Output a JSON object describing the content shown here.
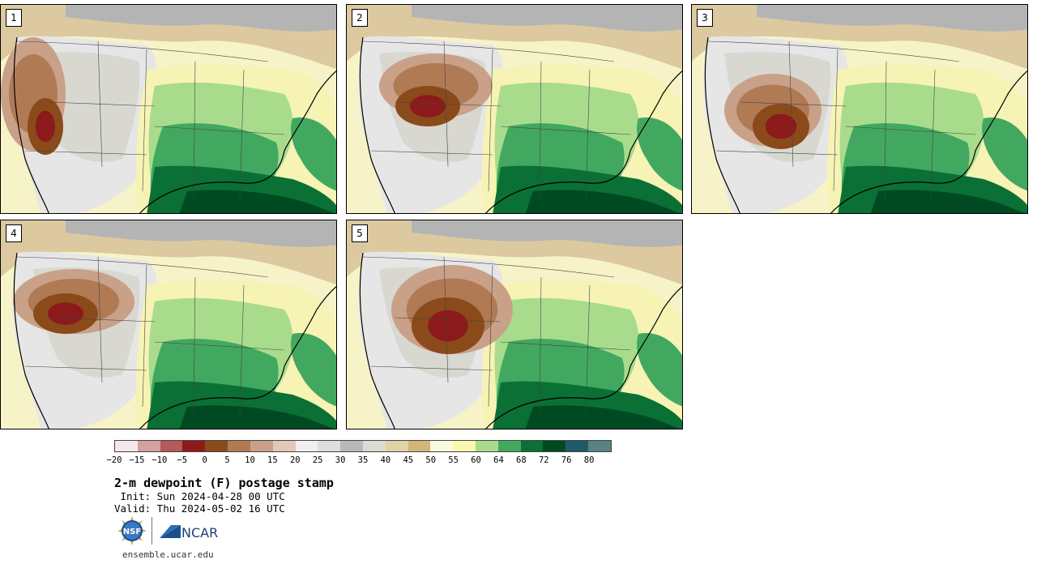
{
  "panels": [
    {
      "label": "1",
      "variant": 0
    },
    {
      "label": "2",
      "variant": 1
    },
    {
      "label": "3",
      "variant": 2
    },
    {
      "label": "4",
      "variant": 3
    },
    {
      "label": "5",
      "variant": 4
    }
  ],
  "colorbar": {
    "colors": [
      "#f6e8e8",
      "#d4a0a0",
      "#b45a5a",
      "#8c1a1a",
      "#8a4a1a",
      "#b07a55",
      "#c9a088",
      "#e3c8b8",
      "#f0f0f0",
      "#dedede",
      "#b8b8b8",
      "#dcdcd0",
      "#e2d2a8",
      "#d2b678",
      "#fafae0",
      "#f8f8b0",
      "#a8dc8c",
      "#42a860",
      "#0a7036",
      "#004a22",
      "#205a66",
      "#5a8282"
    ],
    "ticks": [
      "−20",
      "−15",
      "−10",
      "−5",
      "0",
      "5",
      "10",
      "15",
      "20",
      "25",
      "30",
      "35",
      "40",
      "45",
      "50",
      "55",
      "60",
      "64",
      "68",
      "72",
      "76",
      "80"
    ]
  },
  "title": "2-m dewpoint (F) postage stamp",
  "init": " Init: Sun 2024-04-28 00 UTC",
  "valid": "Valid: Thu 2024-05-02 16 UTC",
  "logos": {
    "nsf": "NSF",
    "ncar": "NCAR"
  },
  "website": "ensemble.ucar.edu"
}
